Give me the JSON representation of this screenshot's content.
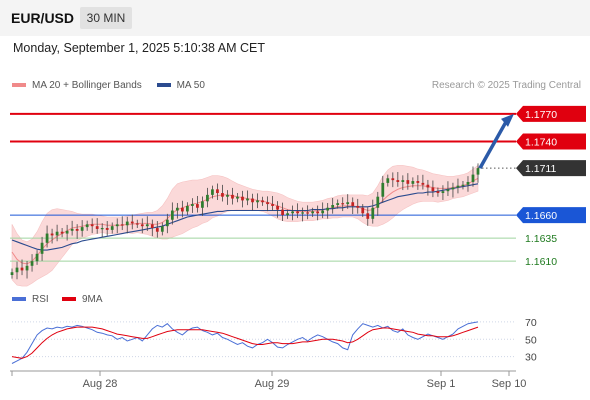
{
  "header": {
    "symbol": "EUR/USD",
    "timeframe": "30 MIN",
    "datetime": "Monday, September 1, 2025 5:10:38 AM CET"
  },
  "legend": {
    "items": [
      {
        "label": "MA 20 + Bollinger Bands",
        "color": "#f08a8a"
      },
      {
        "label": "MA 50",
        "color": "#2b4b8f"
      }
    ],
    "credit": "Research © 2025 Trading Central"
  },
  "chart_data": [
    {
      "type": "candlestick",
      "ylim": [
        1.1595,
        1.1785
      ],
      "price_levels": [
        {
          "value": 1.177,
          "label": "1.1770",
          "kind": "resistance",
          "color": "#e0000f"
        },
        {
          "value": 1.174,
          "label": "1.1740",
          "kind": "resistance",
          "color": "#e0000f"
        },
        {
          "value": 1.1711,
          "label": "1.1711",
          "kind": "last",
          "color": "#333333"
        },
        {
          "value": 1.166,
          "label": "1.1660",
          "kind": "pivot",
          "color": "#1a56d6"
        },
        {
          "value": 1.1635,
          "label": "1.1635",
          "kind": "support",
          "color": "#1f7a1f"
        },
        {
          "value": 1.161,
          "label": "1.1610",
          "kind": "support",
          "color": "#1f7a1f"
        }
      ],
      "forecast_arrow": {
        "from": 1.1711,
        "to": 1.177
      },
      "x_ticks": [
        "Aug 28",
        "Aug 29",
        "Sep 1",
        "Sep 10"
      ],
      "price_path": [
        1.1598,
        1.1603,
        1.16,
        1.1605,
        1.161,
        1.1618,
        1.163,
        1.164,
        1.1638,
        1.1642,
        1.164,
        1.1643,
        1.1645,
        1.1643,
        1.1647,
        1.165,
        1.1648,
        1.1645,
        1.1646,
        1.1644,
        1.1648,
        1.165,
        1.1649,
        1.1653,
        1.1651,
        1.165,
        1.1648,
        1.165,
        1.1646,
        1.1642,
        1.1648,
        1.1655,
        1.1665,
        1.1668,
        1.1664,
        1.167,
        1.1672,
        1.1668,
        1.1675,
        1.1682,
        1.1688,
        1.1684,
        1.168,
        1.1682,
        1.1678,
        1.168,
        1.1676,
        1.1678,
        1.1674,
        1.1676,
        1.1674,
        1.1672,
        1.167,
        1.1666,
        1.166,
        1.1662,
        1.1664,
        1.1662,
        1.1663,
        1.1662,
        1.1664,
        1.1662,
        1.1665,
        1.1668,
        1.1671,
        1.1673,
        1.1672,
        1.1674,
        1.167,
        1.1668,
        1.1662,
        1.1656,
        1.1668,
        1.168,
        1.1695,
        1.17,
        1.1698,
        1.1696,
        1.1698,
        1.1694,
        1.1697,
        1.1695,
        1.1693,
        1.169,
        1.1686,
        1.1684,
        1.1686,
        1.1688,
        1.169,
        1.1692,
        1.1693,
        1.1696,
        1.1704,
        1.1711
      ],
      "ma20": [
        1.162,
        1.1612,
        1.1608,
        1.1607,
        1.161,
        1.1616,
        1.1623,
        1.1629,
        1.1633,
        1.1637,
        1.164,
        1.1643,
        1.1646,
        1.1647,
        1.1648,
        1.1649,
        1.165,
        1.165,
        1.165,
        1.1649,
        1.1649,
        1.1649,
        1.1649,
        1.165,
        1.165,
        1.1651,
        1.1651,
        1.1651,
        1.165,
        1.165,
        1.1652,
        1.1656,
        1.1662,
        1.1666,
        1.1668,
        1.167,
        1.1672,
        1.1673,
        1.1675,
        1.1677,
        1.168,
        1.1681,
        1.1682,
        1.1682,
        1.1681,
        1.168,
        1.1679,
        1.1678,
        1.1677,
        1.1676,
        1.1675,
        1.1674,
        1.1672,
        1.167,
        1.1668,
        1.1666,
        1.1665,
        1.1664,
        1.1664,
        1.1664,
        1.1664,
        1.1665,
        1.1666,
        1.1667,
        1.1668,
        1.1669,
        1.167,
        1.167,
        1.167,
        1.1669,
        1.1667,
        1.1665,
        1.1666,
        1.167,
        1.1676,
        1.1681,
        1.1685,
        1.1688,
        1.169,
        1.1691,
        1.1692,
        1.1692,
        1.1692,
        1.1691,
        1.169,
        1.1689,
        1.1689,
        1.1689,
        1.169,
        1.1691,
        1.1692,
        1.1694,
        1.1697,
        1.17
      ],
      "bb_width": [
        0.003,
        0.0028,
        0.0025,
        0.0024,
        0.0024,
        0.0026,
        0.003,
        0.0033,
        0.0033,
        0.003,
        0.0026,
        0.0022,
        0.0018,
        0.0015,
        0.0013,
        0.0012,
        0.0011,
        0.001,
        0.0009,
        0.0009,
        0.0009,
        0.0009,
        0.0009,
        0.0009,
        0.001,
        0.001,
        0.0011,
        0.0012,
        0.0013,
        0.0015,
        0.0018,
        0.0022,
        0.0026,
        0.0028,
        0.0028,
        0.0027,
        0.0026,
        0.0025,
        0.0024,
        0.0024,
        0.0023,
        0.0022,
        0.002,
        0.0018,
        0.0016,
        0.0014,
        0.0013,
        0.0012,
        0.0011,
        0.0011,
        0.0011,
        0.0012,
        0.0013,
        0.0014,
        0.0014,
        0.0013,
        0.0012,
        0.0011,
        0.001,
        0.001,
        0.001,
        0.001,
        0.001,
        0.0011,
        0.0011,
        0.0012,
        0.0012,
        0.0012,
        0.0012,
        0.0013,
        0.0015,
        0.0016,
        0.0018,
        0.0022,
        0.0026,
        0.0028,
        0.0028,
        0.0026,
        0.0024,
        0.0022,
        0.002,
        0.0018,
        0.0017,
        0.0016,
        0.0015,
        0.0015,
        0.0014,
        0.0013,
        0.0012,
        0.0012,
        0.0012,
        0.0012,
        0.0013,
        0.0014
      ],
      "ma50": [
        1.1633,
        1.1631,
        1.1629,
        1.1627,
        1.1625,
        1.1623,
        1.1622,
        1.1622,
        1.1623,
        1.1624,
        1.1625,
        1.1627,
        1.1629,
        1.163,
        1.1632,
        1.1633,
        1.1634,
        1.1635,
        1.1636,
        1.1637,
        1.1638,
        1.1639,
        1.164,
        1.1641,
        1.1642,
        1.1643,
        1.1644,
        1.1645,
        1.1646,
        1.1647,
        1.1648,
        1.165,
        1.1652,
        1.1654,
        1.1656,
        1.1658,
        1.1659,
        1.166,
        1.1661,
        1.1662,
        1.1663,
        1.1664,
        1.1664,
        1.1665,
        1.1665,
        1.1665,
        1.1665,
        1.1665,
        1.1665,
        1.1665,
        1.1665,
        1.1665,
        1.1665,
        1.1665,
        1.1665,
        1.1665,
        1.1665,
        1.1665,
        1.1665,
        1.1665,
        1.1666,
        1.1666,
        1.1666,
        1.1667,
        1.1667,
        1.1668,
        1.1668,
        1.1669,
        1.1669,
        1.1669,
        1.1669,
        1.1669,
        1.167,
        1.1672,
        1.1674,
        1.1676,
        1.1678,
        1.168,
        1.1681,
        1.1682,
        1.1683,
        1.1684,
        1.1684,
        1.1685,
        1.1685,
        1.1686,
        1.1687,
        1.1688,
        1.1689,
        1.169,
        1.1691,
        1.1692,
        1.1693,
        1.1694
      ]
    },
    {
      "type": "line",
      "name": "RSI",
      "ylim": [
        18,
        78
      ],
      "y_ticks": [
        70,
        50,
        30
      ],
      "series": [
        {
          "name": "RSI",
          "color": "#4a6fd6",
          "values": [
            22,
            25,
            28,
            35,
            45,
            55,
            60,
            63,
            62,
            64,
            63,
            65,
            64,
            66,
            65,
            63,
            61,
            58,
            57,
            55,
            54,
            50,
            52,
            48,
            50,
            52,
            48,
            55,
            62,
            66,
            64,
            68,
            62,
            58,
            55,
            60,
            63,
            64,
            60,
            58,
            55,
            57,
            52,
            50,
            47,
            44,
            46,
            42,
            40,
            44,
            46,
            50,
            46,
            41,
            40,
            44,
            47,
            50,
            52,
            48,
            52,
            55,
            53,
            50,
            47,
            45,
            40,
            38,
            55,
            62,
            68,
            66,
            64,
            66,
            63,
            65,
            60,
            58,
            62,
            55,
            52,
            50,
            53,
            56,
            54,
            52,
            50,
            53,
            56,
            62,
            65,
            68,
            69,
            70
          ]
        },
        {
          "name": "9MA",
          "color": "#e0000f",
          "values": [
            30,
            29,
            28,
            30,
            34,
            40,
            46,
            51,
            55,
            58,
            60,
            62,
            63,
            64,
            64,
            64,
            64,
            63,
            62,
            60,
            58,
            56,
            55,
            54,
            53,
            52,
            51,
            51,
            53,
            55,
            57,
            59,
            60,
            61,
            61,
            61,
            61,
            61,
            61,
            60,
            59,
            58,
            57,
            55,
            53,
            51,
            49,
            47,
            45,
            44,
            44,
            45,
            46,
            46,
            45,
            45,
            45,
            46,
            47,
            47,
            48,
            49,
            50,
            50,
            50,
            49,
            48,
            46,
            47,
            50,
            54,
            58,
            61,
            62,
            63,
            63,
            62,
            61,
            60,
            59,
            58,
            56,
            55,
            54,
            54,
            53,
            53,
            53,
            54,
            56,
            58,
            60,
            62,
            64
          ]
        }
      ]
    }
  ]
}
